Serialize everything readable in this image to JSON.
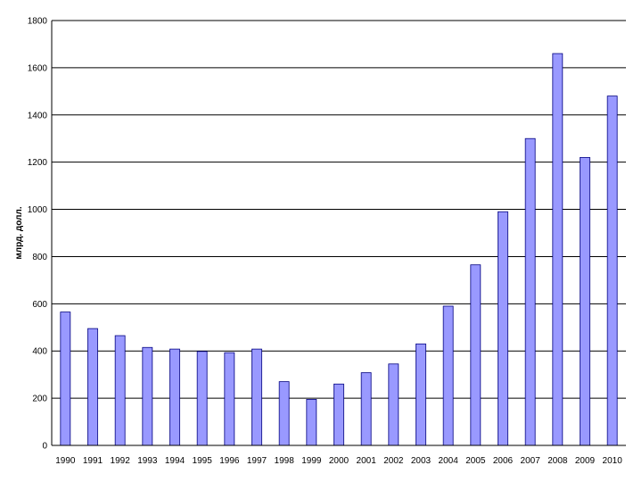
{
  "chart_data": {
    "type": "bar",
    "title": "",
    "xlabel": "",
    "ylabel": "млрд. долл.",
    "ylim": [
      0,
      1800
    ],
    "yticks": [
      0,
      200,
      400,
      600,
      800,
      1000,
      1200,
      1400,
      1600,
      1800
    ],
    "ytick_labels": [
      "0",
      "200",
      "400",
      "600",
      "800",
      "1000",
      "1200",
      "1400",
      "1600",
      "1800"
    ],
    "grid": true,
    "legend": "none",
    "bar_color": "#9999ff",
    "bar_edge_color": "#000080",
    "categories": [
      "1990",
      "1991",
      "1992",
      "1993",
      "1994",
      "1995",
      "1996",
      "1997",
      "1998",
      "1999",
      "2000",
      "2001",
      "2002",
      "2003",
      "2004",
      "2005",
      "2006",
      "2007",
      "2008",
      "2009",
      "2010"
    ],
    "values": [
      565,
      495,
      465,
      415,
      408,
      398,
      393,
      408,
      270,
      195,
      260,
      308,
      345,
      430,
      590,
      765,
      990,
      1300,
      1660,
      1220,
      1480
    ]
  }
}
